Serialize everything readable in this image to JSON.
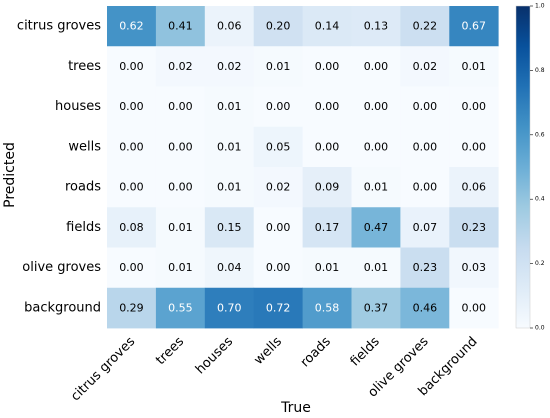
{
  "chart_data": {
    "type": "heatmap",
    "xlabel": "True",
    "ylabel": "Predicted",
    "x_categories": [
      "citrus groves",
      "trees",
      "houses",
      "wells",
      "roads",
      "fields",
      "olive groves",
      "background"
    ],
    "y_categories": [
      "citrus groves",
      "trees",
      "houses",
      "wells",
      "roads",
      "fields",
      "olive groves",
      "background"
    ],
    "values": [
      [
        0.62,
        0.41,
        0.06,
        0.2,
        0.14,
        0.13,
        0.22,
        0.67
      ],
      [
        0.0,
        0.02,
        0.02,
        0.01,
        0.0,
        0.0,
        0.02,
        0.01
      ],
      [
        0.0,
        0.0,
        0.01,
        0.0,
        0.0,
        0.0,
        0.0,
        0.0
      ],
      [
        0.0,
        0.0,
        0.01,
        0.05,
        0.0,
        0.0,
        0.0,
        0.0
      ],
      [
        0.0,
        0.0,
        0.01,
        0.02,
        0.09,
        0.01,
        0.0,
        0.06
      ],
      [
        0.08,
        0.01,
        0.15,
        0.0,
        0.17,
        0.47,
        0.07,
        0.23
      ],
      [
        0.0,
        0.01,
        0.04,
        0.0,
        0.01,
        0.01,
        0.23,
        0.03
      ],
      [
        0.29,
        0.55,
        0.7,
        0.72,
        0.58,
        0.37,
        0.46,
        0.0
      ]
    ],
    "colorbar": {
      "range": [
        0,
        1
      ],
      "ticks": [
        0.0,
        0.2,
        0.4,
        0.6,
        0.8,
        1.0
      ],
      "tick_labels": [
        "0.0",
        "0.2",
        "0.4",
        "0.6",
        "0.8",
        "1.0"
      ],
      "colormap": "Blues"
    }
  }
}
